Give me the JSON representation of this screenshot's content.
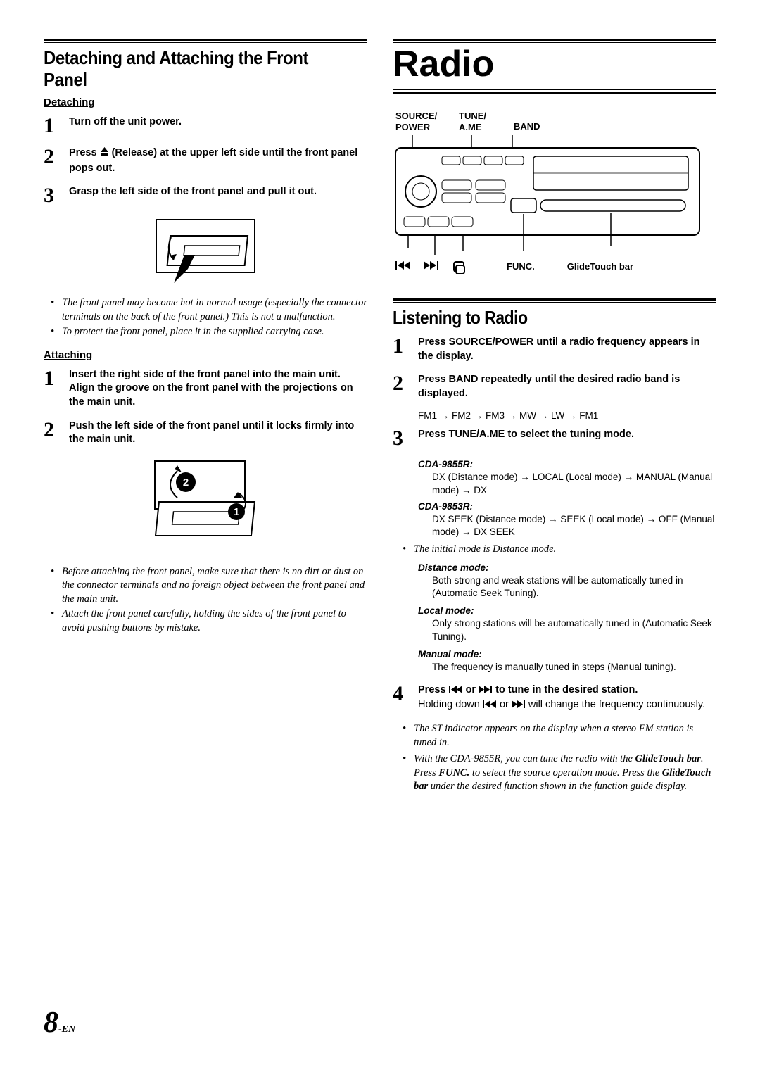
{
  "left": {
    "section_title": "Detaching and Attaching the Front Panel",
    "detaching_head": "Detaching",
    "steps_detach": [
      {
        "n": "1",
        "text": "Turn off the unit power."
      },
      {
        "n": "2",
        "text_before": "Press ",
        "text_after": " (Release) at the upper left side until the front panel pops out."
      },
      {
        "n": "3",
        "text": "Grasp the left side of the front panel and pull it out."
      }
    ],
    "detach_notes": [
      "The front panel may become hot in normal usage (especially the connector terminals on the back of the front panel.) This is not a malfunction.",
      "To protect the front panel, place it in the supplied carrying case."
    ],
    "attaching_head": "Attaching",
    "steps_attach": [
      {
        "n": "1",
        "text": "Insert the right side of the front panel into the main unit. Align the groove on the front panel with the projections on the main unit."
      },
      {
        "n": "2",
        "text": "Push the left side of the front panel until it locks firmly into the main unit."
      }
    ],
    "attach_notes": [
      "Before attaching the front panel, make sure that there is no dirt or dust on the connector terminals and no foreign object between the front panel and the main unit.",
      "Attach the front panel carefully, holding the sides of the front panel to avoid pushing buttons by mistake."
    ]
  },
  "right": {
    "chapter": "Radio",
    "labels_top": {
      "a": "SOURCE/\nPOWER",
      "b": "TUNE/\nA.ME",
      "c": "BAND"
    },
    "labels_bottom": {
      "func": "FUNC.",
      "glide": "GlideTouch bar"
    },
    "listen_title": "Listening to Radio",
    "step1_pre": "Press ",
    "step1_bold": "SOURCE/POWER",
    "step1_post": " until a radio frequency appears in the display.",
    "step2_pre": "Press ",
    "step2_bold": "BAND",
    "step2_post": " repeatedly until the desired radio band is displayed.",
    "band_flow": "FM1 → FM2  → FM3 → MW → LW → FM1",
    "step3_pre": "Press ",
    "step3_bold": "TUNE/A.ME",
    "step3_post": " to select the tuning mode.",
    "model_a": "CDA-9855R:",
    "model_a_body": "DX (Distance mode) → LOCAL (Local mode) → MANUAL (Manual mode) → DX",
    "model_b": "CDA-9853R:",
    "model_b_body": "DX SEEK (Distance mode) → SEEK (Local mode) → OFF (Manual mode) → DX SEEK",
    "initial_note": "The initial mode is Distance mode.",
    "dist_label": "Distance mode:",
    "dist_body": "Both strong and weak stations will be automatically tuned in (Automatic Seek Tuning).",
    "local_label": "Local mode:",
    "local_body": "Only strong stations will be automatically tuned in (Automatic Seek Tuning).",
    "manual_label": "Manual mode:",
    "manual_body": "The frequency is manually tuned in steps (Manual tuning).",
    "step4_pre": "Press ",
    "step4_mid": " or ",
    "step4_post": " to tune in the desired station.",
    "step4_line2_pre": "Holding down ",
    "step4_line2_mid": " or ",
    "step4_line2_post": " will change the frequency continuously.",
    "notes_final": [
      "The ST indicator appears on the display when a stereo FM station is tuned in.",
      "With the CDA-9855R, you can tune the radio with the <b>GlideTouch bar</b>. Press <b>FUNC.</b> to select the source operation mode. Press the <b>GlideTouch bar</b> under the desired function shown in the function guide display."
    ]
  },
  "page": {
    "num": "8",
    "suffix": "-EN"
  }
}
